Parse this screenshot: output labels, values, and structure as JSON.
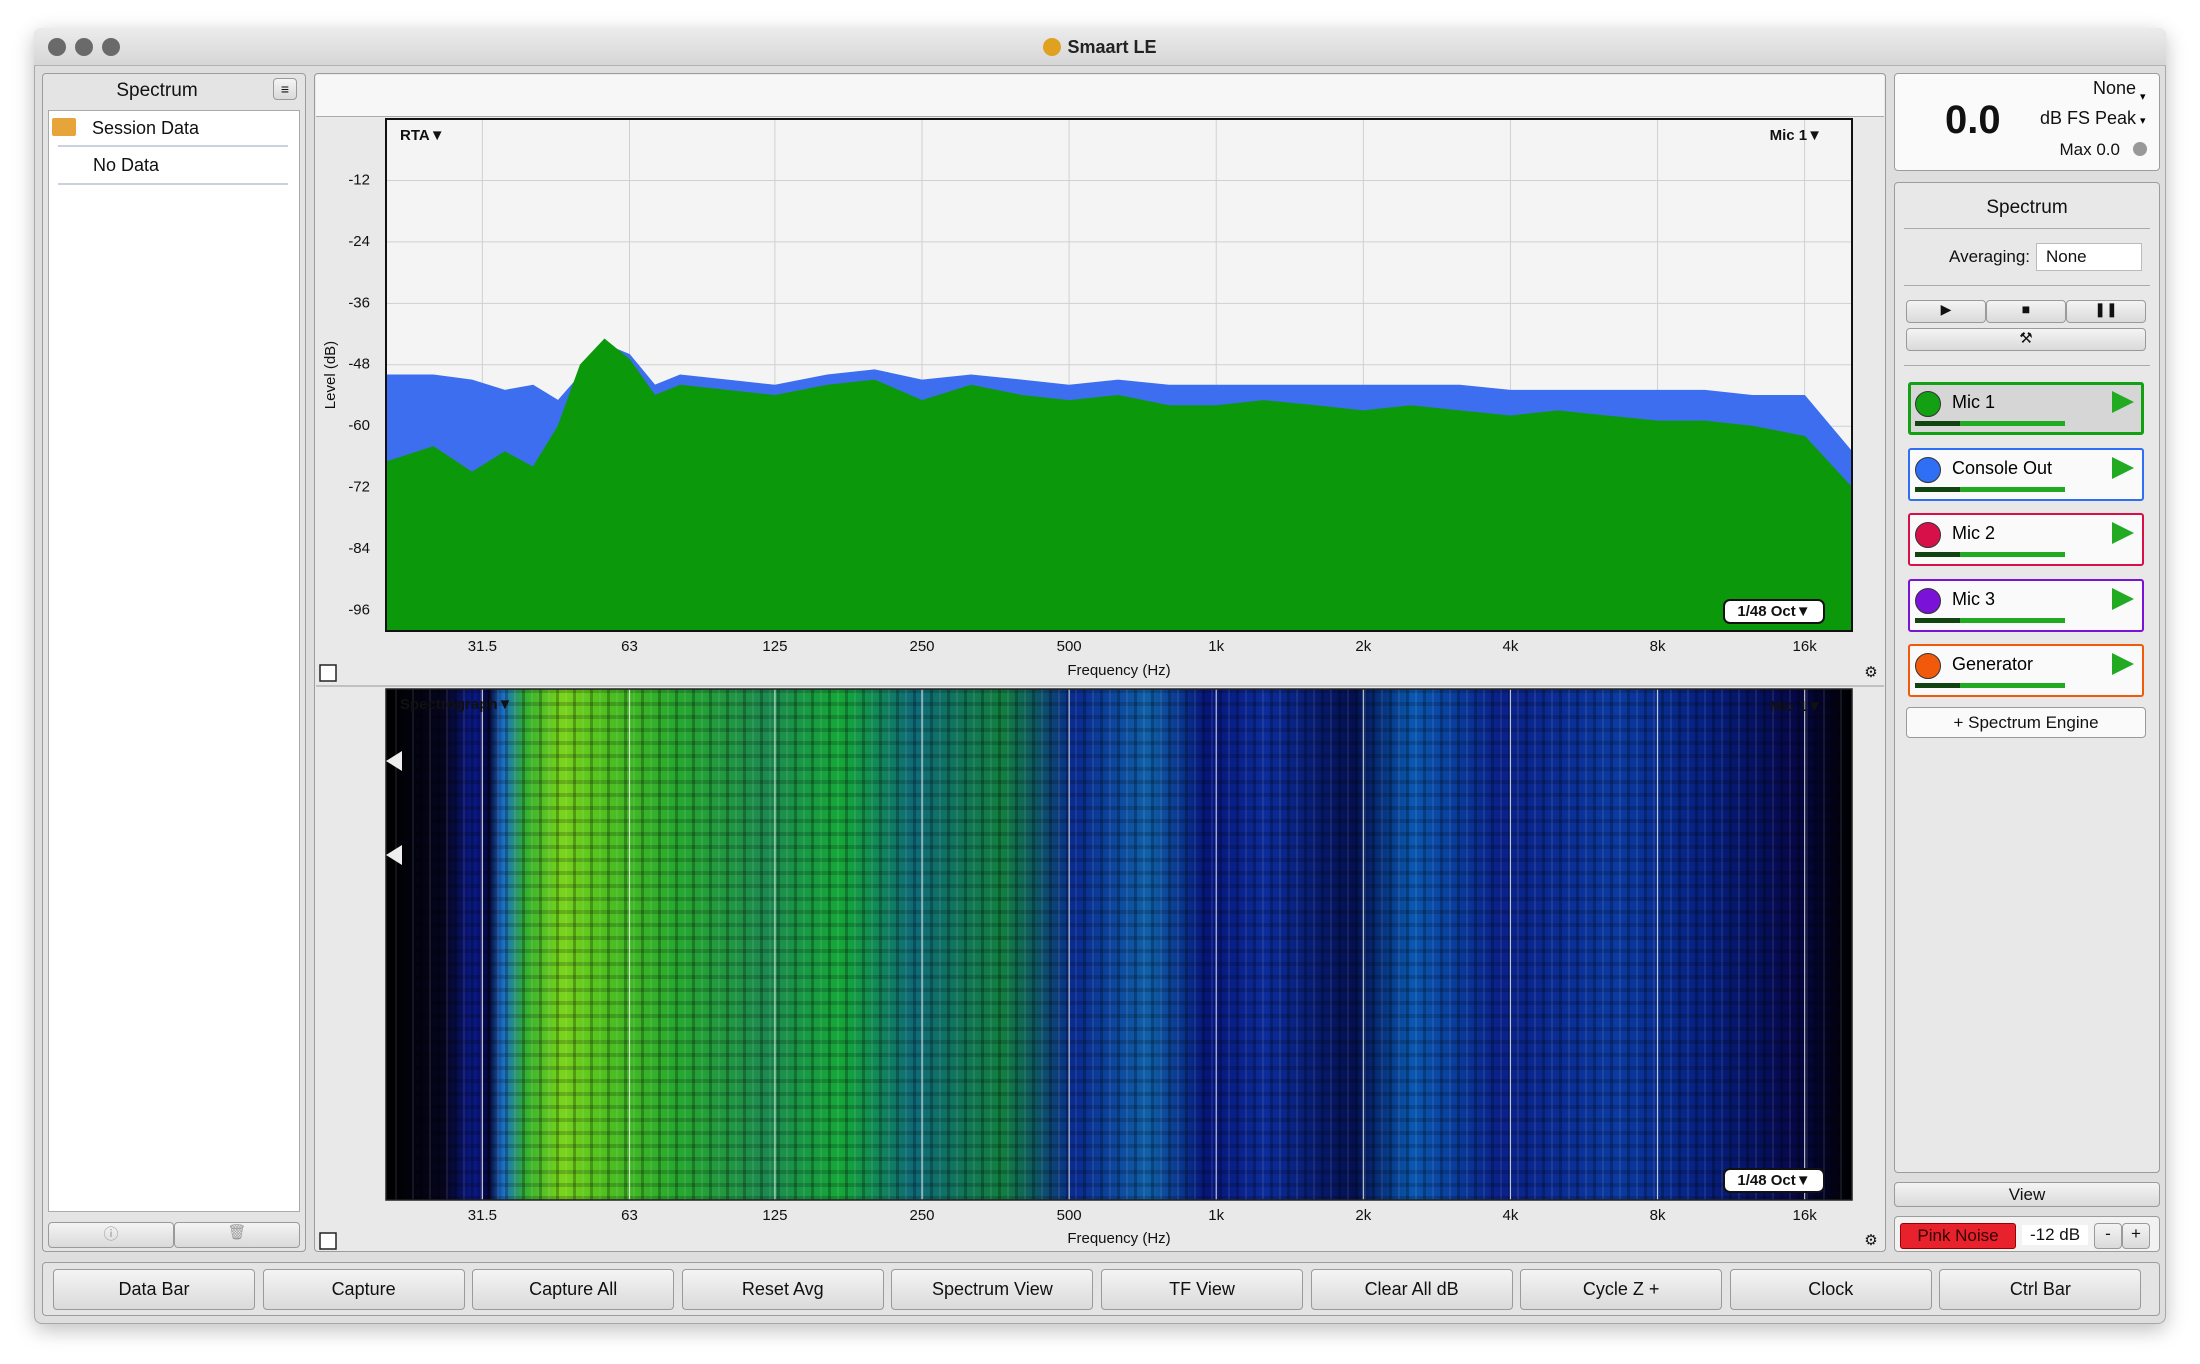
{
  "window": {
    "title": "Smaart LE"
  },
  "sidebar": {
    "title": "Spectrum",
    "items": [
      "Session Data",
      "No Data"
    ]
  },
  "rta": {
    "mode": "RTA▼",
    "input": "Mic 1▼",
    "resolution": "1/48 Oct▼",
    "y_label": "Level (dB)",
    "x_label": "Frequency (Hz)",
    "ylim": [
      -100,
      0
    ],
    "yticks": [
      -12,
      -24,
      -36,
      -48,
      -60,
      -72,
      -84,
      -96
    ],
    "x_scale": "log",
    "xlim": [
      20,
      20000
    ],
    "xticks": [
      31.5,
      63,
      125,
      250,
      500,
      {
        "value": 1000,
        "label": "1k"
      },
      {
        "value": 2000,
        "label": "2k"
      },
      {
        "value": 4000,
        "label": "4k"
      },
      {
        "value": 8000,
        "label": "8k"
      },
      {
        "value": 16000,
        "label": "16k"
      }
    ],
    "x": [
      20,
      25,
      30,
      35,
      40,
      45,
      50,
      56,
      63,
      71,
      80,
      100,
      125,
      160,
      200,
      250,
      315,
      400,
      500,
      630,
      800,
      1000,
      1250,
      1600,
      2000,
      2500,
      3150,
      4000,
      5000,
      6300,
      8000,
      10000,
      12500,
      16000,
      20000
    ],
    "series": [
      {
        "color": "#3d6ef0",
        "values": [
          -50,
          -50,
          -51,
          -53,
          -52,
          -55,
          -50,
          -44,
          -46,
          -52,
          -50,
          -51,
          -52,
          -50,
          -49,
          -51,
          -50,
          -51,
          -52,
          -51,
          -52,
          -52,
          -52,
          -52,
          -52,
          -52,
          -52,
          -53,
          -53,
          -53,
          -53,
          -53,
          -54,
          -54,
          -65
        ]
      },
      {
        "color": "#0b990b",
        "values": [
          -67,
          -64,
          -69,
          -65,
          -68,
          -60,
          -48,
          -43,
          -47,
          -54,
          -52,
          -53,
          -54,
          -52,
          -51,
          -55,
          -52,
          -54,
          -55,
          -54,
          -56,
          -56,
          -55,
          -56,
          -57,
          -56,
          -57,
          -58,
          -57,
          -58,
          -59,
          -59,
          -60,
          -62,
          -72
        ]
      }
    ]
  },
  "spectrograph": {
    "mode": "Spectrograph▼",
    "input": "Mic 1▼",
    "resolution": "1/48 Oct▼",
    "x_label": "Frequency (Hz)",
    "x_scale": "log",
    "xlim": [
      20,
      20000
    ],
    "xticks": [
      31.5,
      63,
      125,
      250,
      500,
      {
        "value": 1000,
        "label": "1k"
      },
      {
        "value": 2000,
        "label": "2k"
      },
      {
        "value": 4000,
        "label": "4k"
      },
      {
        "value": 8000,
        "label": "8k"
      },
      {
        "value": 16000,
        "label": "16k"
      }
    ]
  },
  "meter": {
    "source": "None",
    "value": "0.0",
    "unit": "dB FS Peak",
    "max": "Max 0.0"
  },
  "control": {
    "title": "Spectrum",
    "averaging_label": "Averaging:",
    "averaging": "None",
    "channels": [
      {
        "name": "Mic 1",
        "color": "#13a013"
      },
      {
        "name": "Console Out",
        "color": "#2f6ff5"
      },
      {
        "name": "Mic 2",
        "color": "#d8104a"
      },
      {
        "name": "Mic 3",
        "color": "#7a12d8"
      },
      {
        "name": "Generator",
        "color": "#f05a0a"
      }
    ],
    "add_button": "+ Spectrum Engine"
  },
  "footer": {
    "view": "View",
    "generator": "Pink Noise",
    "level": "-12 dB",
    "minus": "-",
    "plus": "+"
  },
  "toolbar": [
    "Data Bar",
    "Capture",
    "Capture All",
    "Reset Avg",
    "Spectrum View",
    "TF View",
    "Clear All dB",
    "Cycle Z +",
    "Clock",
    "Ctrl Bar"
  ]
}
